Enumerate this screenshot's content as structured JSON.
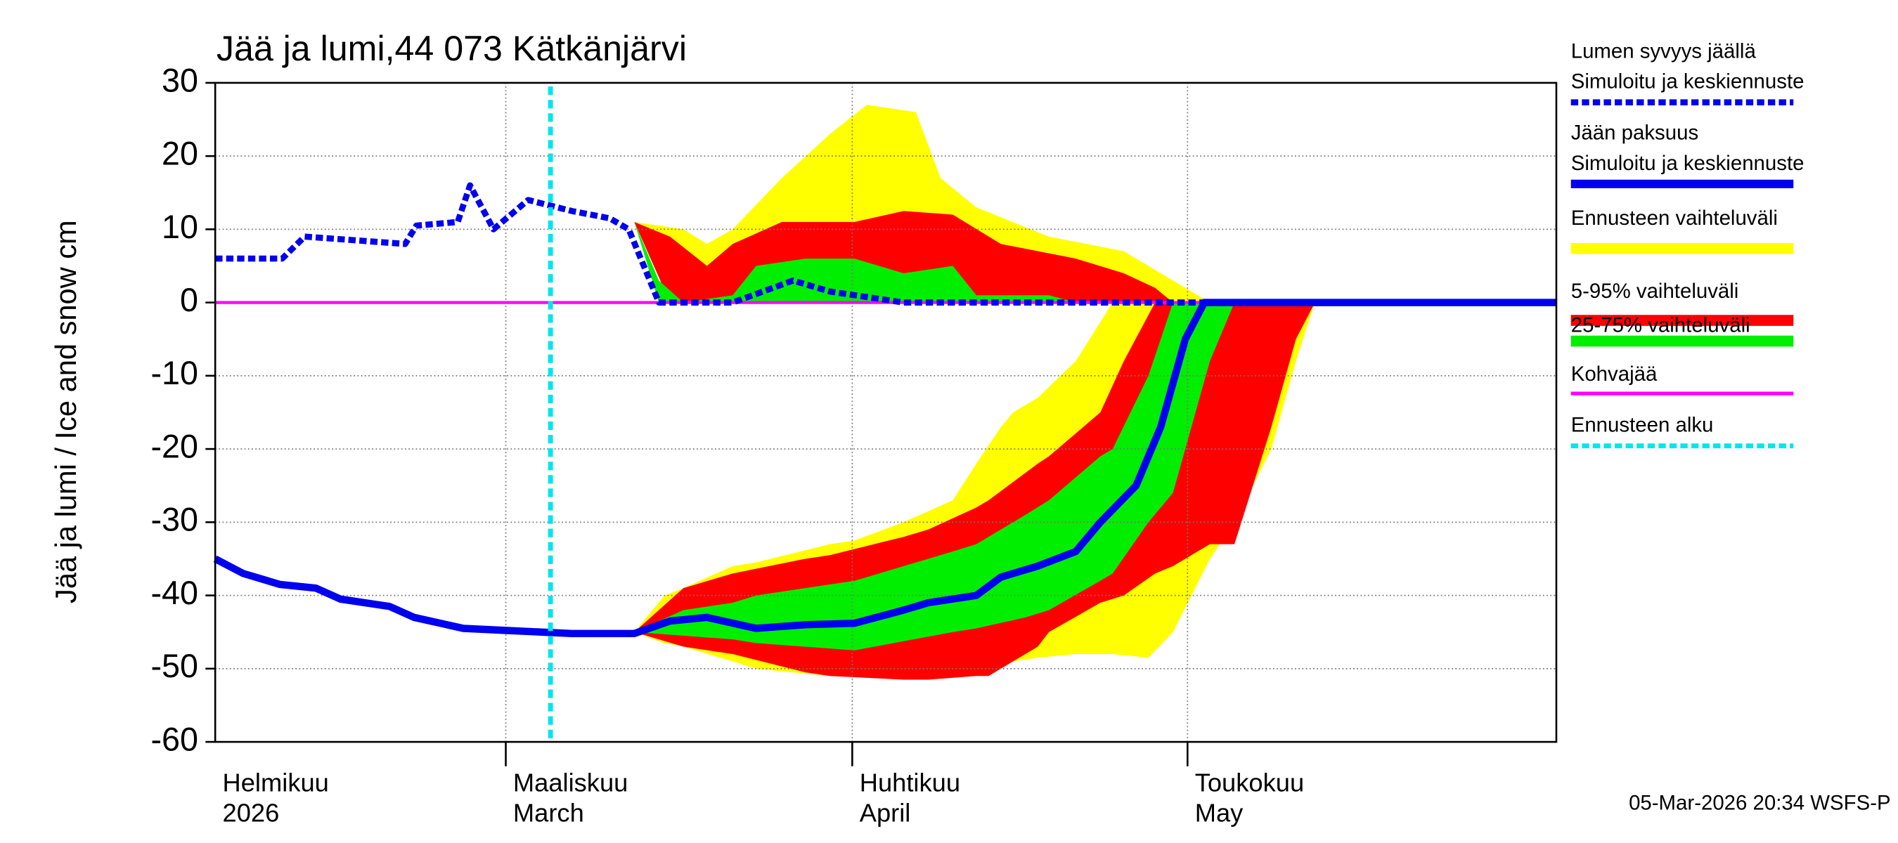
{
  "chart_data": {
    "type": "ice-snow",
    "title": "Jää ja lumi,44 073 Kätkänjärvi",
    "y_label": "Jää ja lumi / Ice and snow    cm",
    "footer": "05-Mar-2026 20:34 WSFS-P",
    "xlim": [
      34,
      154
    ],
    "ylim": [
      -60,
      30
    ],
    "yticks": [
      -60,
      -50,
      -40,
      -30,
      -20,
      -10,
      0,
      10,
      20,
      30
    ],
    "xticks": [
      {
        "value": 32,
        "label": "Helmikuu"
      },
      {
        "value": 60,
        "label": "Maaliskuu"
      },
      {
        "value": 91,
        "label": "Huhtikuu"
      },
      {
        "value": 121,
        "label": "Toukokuu"
      }
    ],
    "xtick_sublabels": [
      "2026",
      "March",
      "April",
      "May"
    ],
    "grid": true,
    "bands": [
      {
        "name": "Ennusteen vaihteluväli",
        "color": "#ffff00",
        "areas": [
          {
            "x": [
              67,
              71.5,
              75.9,
              78,
              80.3,
              84.7,
              89,
              92.3,
              96.7,
              98.9,
              102.1,
              108.6,
              115.3,
              119.7,
              123
            ],
            "upper": [
              13,
              11,
              10,
              8,
              10,
              17,
              23,
              27,
              26,
              17,
              13,
              9,
              7,
              3,
              0
            ],
            "lower": [
              13,
              11,
              0,
              0,
              0,
              0,
              0,
              0,
              0,
              0,
              0,
              0,
              0,
              0,
              0
            ]
          },
          {
            "x": [
              71.5,
              74.2,
              75.9,
              80.3,
              82.4,
              89,
              91.2,
              95.6,
              100,
              102.1,
              104.3,
              105.4,
              107.6,
              111,
              114.3,
              117.5,
              119.7,
              123,
              125.2,
              128.5,
              130.7,
              132.4
            ],
            "upper": [
              -45,
              -40,
              -39,
              -36,
              -35.5,
              -33,
              -32.5,
              -30,
              -27,
              -22,
              -17,
              -15,
              -13,
              -8,
              0,
              0,
              0,
              0,
              0,
              0,
              0,
              0
            ],
            "lower": [
              -45,
              -46.5,
              -47,
              -49,
              -50,
              -51,
              -51,
              -51,
              -51,
              -50.5,
              -50,
              -49,
              -48.5,
              -48,
              -48,
              -48.5,
              -45,
              -35,
              -30,
              -20,
              -8,
              0
            ]
          }
        ]
      },
      {
        "name": "5-95% vaihteluväli",
        "color": "#ff0000",
        "areas": [
          {
            "x": [
              67,
              71.5,
              74.7,
              78,
              80.3,
              84.7,
              91.2,
              95.6,
              100,
              104.3,
              111,
              115.3,
              118.1,
              119.7
            ],
            "upper": [
              13,
              11,
              9,
              5,
              8,
              11,
              11,
              12.5,
              12,
              8,
              6,
              4,
              2,
              0
            ],
            "lower": [
              13,
              11,
              0,
              0,
              0,
              0,
              0,
              0,
              0,
              0,
              0,
              0,
              0,
              0
            ]
          },
          {
            "x": [
              71.5,
              75.9,
              80.3,
              86.8,
              89,
              95.6,
              97.8,
              102.1,
              103.2,
              107.6,
              108.6,
              113.2,
              115.3,
              118.1,
              119.7,
              123,
              125.2,
              128.5,
              130.7,
              132.4
            ],
            "upper": [
              -45,
              -39,
              -37,
              -35,
              -34.5,
              -32,
              -31,
              -28,
              -27,
              -22,
              -21,
              -15,
              -8,
              0,
              0,
              0,
              0,
              0,
              0,
              0
            ],
            "lower": [
              -45,
              -47,
              -48,
              -50.5,
              -51,
              -51.5,
              -51.5,
              -51,
              -51,
              -47,
              -45,
              -41,
              -40,
              -37,
              -36,
              -33,
              -33,
              -17,
              -5,
              0
            ]
          }
        ]
      },
      {
        "name": "25-75% vaihteluväli",
        "color": "#00ee00",
        "areas": [
          {
            "x": [
              71.5,
              73.7,
              75.9,
              80.3,
              82.4,
              86.8,
              91.2,
              95.6,
              100,
              102.1,
              108.6,
              111
            ],
            "upper": [
              11,
              3,
              0,
              1,
              5,
              6,
              6,
              4,
              5,
              1,
              1,
              0
            ],
            "lower": [
              11,
              0,
              0,
              0,
              0,
              0,
              0,
              0,
              0,
              0,
              0,
              0
            ]
          },
          {
            "x": [
              71.5,
              75.9,
              80.3,
              82.4,
              91.2,
              100,
              102.1,
              106.5,
              108.6,
              113.2,
              114.3,
              117.5,
              119.7,
              120.8,
              123,
              125.2
            ],
            "upper": [
              -45,
              -42,
              -41,
              -40,
              -38,
              -34,
              -33,
              -29,
              -27,
              -21,
              -20,
              -10,
              0,
              0,
              0,
              0
            ],
            "lower": [
              -45,
              -45.5,
              -46,
              -46.5,
              -47.5,
              -45,
              -44.5,
              -43,
              -42,
              -38,
              -37,
              -30,
              -26,
              -20,
              -8,
              0
            ]
          }
        ]
      }
    ],
    "series": [
      {
        "name": "Lumen syvyys jäällä",
        "subname": "Simuloitu ja keskiennuste",
        "color": "#0000ee",
        "dash": true,
        "x": [
          34,
          40,
          42,
          51,
          52,
          55.7,
          56.8,
          58.9,
          62,
          65.9,
          69.3,
          71,
          73.7,
          80.3,
          85.7,
          89,
          95.6,
          154
        ],
        "values": [
          6,
          6,
          9,
          8,
          10.5,
          11,
          16,
          10,
          14,
          12.5,
          11.5,
          10,
          0,
          0,
          3,
          1.5,
          0,
          0
        ]
      },
      {
        "name": "Jään paksuus",
        "subname": "Simuloitu ja keskiennuste",
        "color": "#0000ee",
        "dash": false,
        "x": [
          34,
          36.5,
          39.8,
          43,
          45.2,
          49.6,
          51.8,
          56.2,
          60.3,
          65.9,
          71.5,
          74.7,
          78,
          82.4,
          86.8,
          91.2,
          95.6,
          97.8,
          102.1,
          104.3,
          107.6,
          111,
          113.2,
          116.4,
          118.6,
          120.8,
          122.5,
          154
        ],
        "values": [
          -35,
          -37,
          -38.5,
          -39,
          -40.5,
          -41.5,
          -43,
          -44.5,
          -44.8,
          -45.2,
          -45.2,
          -43.5,
          -43,
          -44.5,
          -44,
          -43.8,
          -42,
          -41,
          -40,
          -37.5,
          -36,
          -34,
          -30,
          -25,
          -17,
          -5,
          0,
          0
        ]
      }
    ],
    "kohvajaa": {
      "name": "Kohvajää",
      "color": "#ff00ff",
      "x": [
        34,
        154
      ],
      "values": [
        0,
        0
      ]
    },
    "forecast_start": {
      "name": "Ennusteen alku",
      "color": "#00e5ee",
      "x": 64
    }
  }
}
